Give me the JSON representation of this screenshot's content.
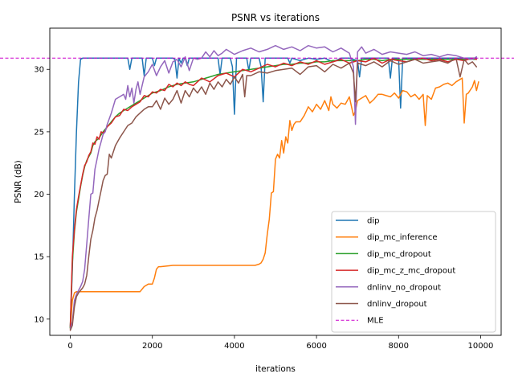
{
  "chart_data": {
    "type": "line",
    "title": "PSNR vs iterations",
    "xlabel": "iterations",
    "ylabel": "PSNR (dB)",
    "xlim": [
      -500,
      10500
    ],
    "ylim": [
      8.7,
      33.3
    ],
    "xticks": [
      0,
      2000,
      4000,
      6000,
      8000,
      10000
    ],
    "yticks": [
      10,
      15,
      20,
      25,
      30
    ],
    "grid": false,
    "legend_position": "lower right",
    "series": [
      {
        "name": "dip",
        "color": "#1f77b4",
        "x": [
          0,
          50,
          100,
          150,
          200,
          250,
          300,
          400,
          600,
          1000,
          1400,
          1450,
          1500,
          1550,
          1600,
          1750,
          1800,
          1850,
          1900,
          2000,
          2050,
          2100,
          2150,
          2200,
          2500,
          2550,
          2600,
          2650,
          2700,
          2750,
          2800,
          2850,
          2900,
          3000,
          3500,
          3600,
          3650,
          3700,
          3900,
          3950,
          4000,
          4050,
          4100,
          4300,
          4350,
          4400,
          4450,
          4500,
          4600,
          4650,
          4700,
          4750,
          4800,
          5000,
          5200,
          5300,
          5350,
          5400,
          5600,
          5800,
          6000,
          6200,
          6400,
          6600,
          6800,
          7000,
          7050,
          7100,
          7150,
          7200,
          7400,
          7600,
          7750,
          7800,
          7850,
          7900,
          8000,
          8050,
          8100,
          8150,
          8200,
          8400,
          8600,
          8800,
          9000,
          9200,
          9400,
          9600,
          9800,
          9900
        ],
        "y": [
          9.3,
          14.0,
          20.0,
          25.0,
          29.0,
          30.8,
          30.9,
          30.9,
          30.9,
          30.9,
          30.9,
          30.0,
          30.9,
          30.9,
          30.9,
          30.9,
          29.5,
          30.9,
          30.9,
          30.9,
          30.3,
          30.9,
          30.9,
          30.9,
          30.9,
          30.8,
          29.3,
          30.9,
          30.5,
          30.9,
          30.9,
          30.3,
          30.9,
          30.9,
          30.9,
          30.9,
          29.6,
          30.9,
          30.9,
          30.2,
          26.4,
          30.9,
          30.9,
          30.9,
          29.9,
          30.9,
          30.9,
          30.9,
          30.9,
          30.2,
          27.4,
          30.9,
          30.9,
          30.9,
          30.9,
          30.9,
          30.5,
          30.9,
          30.7,
          30.9,
          30.8,
          30.9,
          30.6,
          30.9,
          30.9,
          30.7,
          29.4,
          30.9,
          30.9,
          30.9,
          30.9,
          30.9,
          30.9,
          29.3,
          30.9,
          30.9,
          30.9,
          26.9,
          30.9,
          30.9,
          30.9,
          30.9,
          30.9,
          30.9,
          30.9,
          30.9,
          30.9,
          30.9,
          30.9,
          30.9
        ]
      },
      {
        "name": "dip_mc_inference",
        "color": "#ff7f0e",
        "x": [
          0,
          50,
          100,
          150,
          200,
          300,
          500,
          1000,
          1500,
          1700,
          1800,
          1900,
          2000,
          2050,
          2100,
          2150,
          2200,
          2500,
          3000,
          3500,
          4000,
          4500,
          4600,
          4650,
          4700,
          4750,
          4800,
          4850,
          4900,
          4950,
          5000,
          5050,
          5100,
          5150,
          5200,
          5250,
          5300,
          5350,
          5400,
          5450,
          5500,
          5600,
          5700,
          5800,
          5900,
          6000,
          6100,
          6200,
          6300,
          6350,
          6400,
          6500,
          6600,
          6700,
          6800,
          6900,
          6950,
          7000,
          7100,
          7200,
          7300,
          7400,
          7500,
          7600,
          7700,
          7800,
          7900,
          8000,
          8100,
          8200,
          8300,
          8400,
          8500,
          8600,
          8650,
          8700,
          8800,
          8900,
          9000,
          9100,
          9200,
          9300,
          9400,
          9500,
          9550,
          9600,
          9650,
          9700,
          9800,
          9850,
          9900,
          9950
        ],
        "y": [
          9.2,
          11.5,
          12.1,
          12.2,
          12.2,
          12.2,
          12.2,
          12.2,
          12.2,
          12.2,
          12.6,
          12.8,
          12.8,
          13.3,
          14.0,
          14.2,
          14.2,
          14.3,
          14.3,
          14.3,
          14.3,
          14.3,
          14.4,
          14.5,
          14.8,
          15.3,
          16.8,
          18.0,
          20.1,
          20.2,
          22.8,
          23.2,
          22.9,
          24.3,
          23.3,
          24.6,
          24.1,
          25.9,
          25.1,
          25.6,
          25.8,
          25.8,
          26.3,
          27.0,
          26.6,
          27.2,
          26.8,
          27.5,
          26.7,
          27.8,
          27.2,
          26.9,
          27.3,
          27.2,
          27.8,
          26.3,
          26.7,
          27.5,
          27.7,
          27.9,
          27.3,
          27.6,
          28.0,
          28.0,
          27.9,
          27.8,
          28.1,
          27.7,
          28.3,
          28.2,
          27.8,
          28.0,
          27.6,
          28.0,
          25.5,
          27.9,
          27.6,
          28.5,
          28.6,
          28.8,
          28.9,
          28.7,
          29.0,
          29.2,
          29.3,
          25.7,
          28.0,
          28.1,
          28.6,
          29.1,
          28.3,
          29.0
        ]
      },
      {
        "name": "dip_mc_dropout",
        "color": "#2ca02c",
        "x": [
          0,
          50,
          100,
          150,
          200,
          250,
          300,
          350,
          400,
          450,
          500,
          550,
          600,
          700,
          800,
          900,
          1000,
          1100,
          1200,
          1300,
          1400,
          1500,
          1600,
          1700,
          1800,
          1900,
          2000,
          2200,
          2400,
          2600,
          2800,
          3000,
          3200,
          3400,
          3600,
          3800,
          4000,
          4200,
          4400,
          4600,
          4800,
          5000,
          5200,
          5400,
          5600,
          5800,
          6000,
          6200,
          6400,
          6600,
          6800,
          7000,
          7200,
          7400,
          7600,
          7800,
          8000,
          8200,
          8400,
          8600,
          8800,
          9000,
          9200,
          9400,
          9600,
          9800,
          9900
        ],
        "y": [
          9.3,
          14.5,
          17.0,
          18.6,
          19.6,
          20.6,
          21.5,
          22.2,
          22.7,
          23.0,
          23.3,
          23.9,
          24.2,
          24.5,
          25.0,
          25.4,
          25.8,
          26.2,
          26.5,
          26.7,
          26.9,
          27.1,
          27.3,
          27.5,
          27.7,
          27.9,
          28.1,
          28.3,
          28.6,
          28.8,
          28.9,
          29.0,
          29.2,
          29.4,
          29.6,
          29.7,
          29.8,
          29.9,
          30.0,
          30.1,
          30.2,
          30.3,
          30.4,
          30.4,
          30.5,
          30.5,
          30.6,
          30.6,
          30.7,
          30.7,
          30.7,
          30.7,
          30.8,
          30.8,
          30.7,
          30.8,
          30.8,
          30.8,
          30.8,
          30.8,
          30.8,
          30.8,
          30.8,
          30.8,
          30.8,
          30.8,
          30.8
        ]
      },
      {
        "name": "dip_mc_z_mc_dropout",
        "color": "#d62728",
        "x": [
          0,
          50,
          100,
          150,
          200,
          250,
          300,
          350,
          400,
          450,
          500,
          550,
          600,
          650,
          700,
          750,
          800,
          850,
          900,
          1000,
          1100,
          1200,
          1300,
          1400,
          1500,
          1600,
          1700,
          1800,
          1900,
          2000,
          2100,
          2200,
          2300,
          2400,
          2500,
          2600,
          2700,
          2800,
          2900,
          3000,
          3200,
          3400,
          3600,
          3800,
          4000,
          4200,
          4400,
          4600,
          4800,
          5000,
          5200,
          5400,
          5600,
          5800,
          6000,
          6200,
          6400,
          6600,
          6800,
          7000,
          7200,
          7400,
          7600,
          7800,
          8000,
          8200,
          8400,
          8600,
          8800,
          9000,
          9200,
          9400,
          9600,
          9800,
          9900
        ],
        "y": [
          9.4,
          15.0,
          17.2,
          18.8,
          19.8,
          20.7,
          21.6,
          22.3,
          22.6,
          23.1,
          23.4,
          24.1,
          24.0,
          24.6,
          24.4,
          25.0,
          24.9,
          25.1,
          25.4,
          25.7,
          26.2,
          26.3,
          26.8,
          26.7,
          27.0,
          27.2,
          27.4,
          27.9,
          27.8,
          28.2,
          28.1,
          28.4,
          28.3,
          28.8,
          28.6,
          28.9,
          28.7,
          29.0,
          28.8,
          28.7,
          29.3,
          29.0,
          29.5,
          29.7,
          29.4,
          30.0,
          29.8,
          30.1,
          30.4,
          30.2,
          30.5,
          30.3,
          30.6,
          30.4,
          30.7,
          30.4,
          30.6,
          30.8,
          30.5,
          30.7,
          30.6,
          30.9,
          30.5,
          30.8,
          30.7,
          30.6,
          30.8,
          30.9,
          30.7,
          30.8,
          30.6,
          30.8,
          30.7,
          30.9,
          30.8
        ]
      },
      {
        "name": "dnlinv_no_dropout",
        "color": "#9467bd",
        "x": [
          0,
          50,
          100,
          150,
          200,
          250,
          300,
          350,
          400,
          450,
          500,
          550,
          600,
          650,
          700,
          750,
          800,
          850,
          900,
          1000,
          1100,
          1200,
          1300,
          1350,
          1400,
          1450,
          1500,
          1550,
          1600,
          1650,
          1700,
          1800,
          1900,
          2000,
          2100,
          2200,
          2300,
          2400,
          2500,
          2600,
          2700,
          2800,
          2900,
          3000,
          3100,
          3200,
          3300,
          3400,
          3500,
          3600,
          3700,
          3800,
          3900,
          4000,
          4200,
          4400,
          4600,
          4800,
          5000,
          5200,
          5400,
          5600,
          5800,
          6000,
          6200,
          6400,
          6600,
          6800,
          6900,
          6950,
          7000,
          7100,
          7200,
          7400,
          7600,
          7800,
          8000,
          8200,
          8400,
          8600,
          8800,
          9000,
          9200,
          9400,
          9600,
          9800,
          9900
        ],
        "y": [
          9.2,
          9.8,
          11.5,
          12.0,
          12.3,
          12.6,
          13.0,
          14.0,
          16.0,
          18.0,
          20.0,
          20.1,
          22.0,
          22.8,
          23.6,
          24.2,
          24.8,
          25.0,
          25.6,
          26.5,
          27.6,
          27.8,
          28.0,
          27.6,
          28.7,
          27.8,
          28.5,
          27.3,
          28.4,
          29.0,
          28.0,
          29.4,
          29.8,
          30.4,
          29.5,
          30.2,
          30.7,
          29.7,
          30.6,
          30.8,
          30.2,
          31.0,
          29.9,
          30.9,
          30.8,
          30.9,
          31.4,
          31.0,
          31.5,
          31.1,
          31.3,
          31.6,
          31.4,
          31.2,
          31.5,
          31.7,
          31.4,
          31.6,
          31.9,
          31.6,
          31.8,
          31.5,
          31.9,
          31.7,
          31.8,
          31.4,
          31.7,
          31.3,
          30.2,
          25.6,
          31.4,
          31.8,
          31.3,
          31.6,
          31.2,
          31.4,
          31.3,
          31.2,
          31.4,
          31.1,
          31.2,
          31.0,
          31.2,
          31.1,
          30.9,
          30.8,
          31.0
        ]
      },
      {
        "name": "dnlinv_dropout",
        "color": "#8c564b",
        "x": [
          0,
          50,
          100,
          150,
          200,
          250,
          300,
          350,
          400,
          450,
          500,
          550,
          600,
          650,
          700,
          750,
          800,
          850,
          900,
          950,
          1000,
          1100,
          1200,
          1300,
          1400,
          1500,
          1600,
          1700,
          1800,
          1900,
          2000,
          2100,
          2200,
          2300,
          2400,
          2500,
          2600,
          2700,
          2800,
          2900,
          3000,
          3100,
          3200,
          3300,
          3400,
          3500,
          3600,
          3700,
          3800,
          3900,
          4000,
          4100,
          4200,
          4250,
          4300,
          4400,
          4600,
          4800,
          5000,
          5200,
          5400,
          5600,
          5800,
          6000,
          6200,
          6400,
          6600,
          6800,
          6900,
          6950,
          7000,
          7200,
          7400,
          7600,
          7800,
          8000,
          8200,
          8400,
          8600,
          8800,
          9000,
          9200,
          9400,
          9500,
          9600,
          9700,
          9800,
          9900
        ],
        "y": [
          9.1,
          9.5,
          11.0,
          11.8,
          12.1,
          12.3,
          12.5,
          12.8,
          13.5,
          15.0,
          16.4,
          17.1,
          18.1,
          18.7,
          19.5,
          20.3,
          21.1,
          21.5,
          21.6,
          23.2,
          22.9,
          23.9,
          24.5,
          25.0,
          25.5,
          25.7,
          26.2,
          26.5,
          26.8,
          27.0,
          27.0,
          27.5,
          26.8,
          27.7,
          27.2,
          27.6,
          28.3,
          27.3,
          28.3,
          27.8,
          28.5,
          28.1,
          28.6,
          28.0,
          28.9,
          28.4,
          29.0,
          28.6,
          29.2,
          28.8,
          29.4,
          28.9,
          29.6,
          27.8,
          29.5,
          29.5,
          29.8,
          29.7,
          29.9,
          30.0,
          30.1,
          29.6,
          30.2,
          30.3,
          29.8,
          30.4,
          30.1,
          30.5,
          29.7,
          27.4,
          30.5,
          30.3,
          30.6,
          30.2,
          30.7,
          30.4,
          30.6,
          30.8,
          30.5,
          30.6,
          30.7,
          30.5,
          30.9,
          29.4,
          30.8,
          30.4,
          30.6,
          30.2
        ]
      }
    ],
    "reference_line": {
      "name": "MLE",
      "color": "#cc00cc",
      "y": 30.9,
      "style": "dashed"
    }
  }
}
